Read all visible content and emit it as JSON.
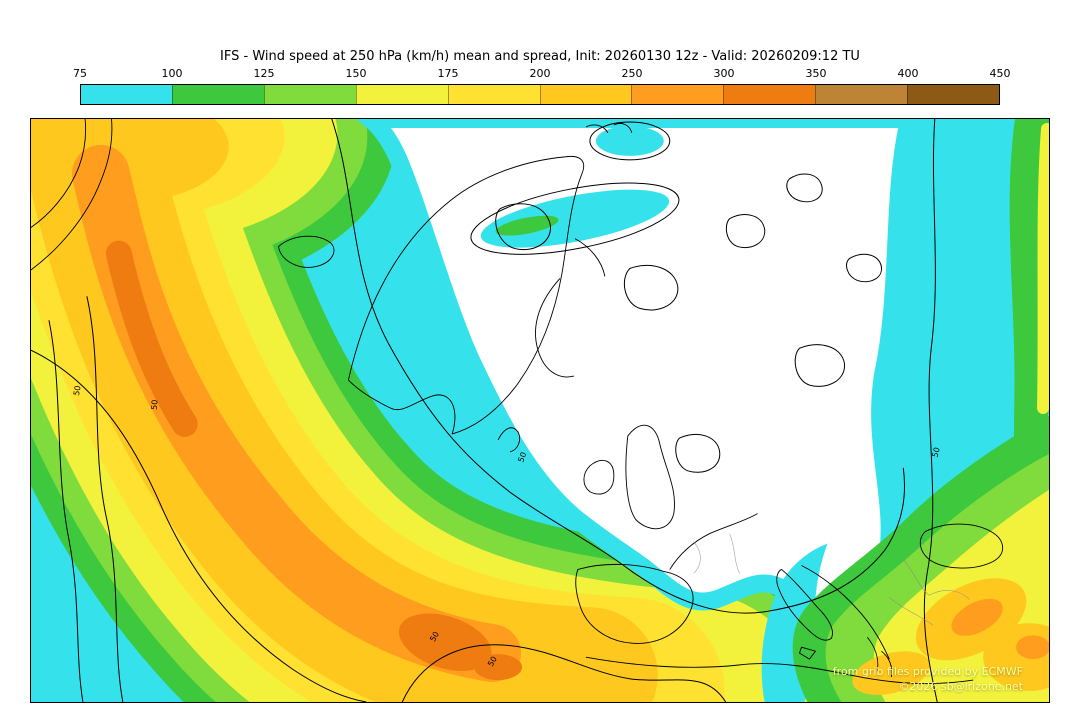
{
  "title": "IFS - Wind speed at 250 hPa (km/h) mean and spread, Init: 20260130 12z - Valid: 20260209:12 TU",
  "colorbar": {
    "ticks": [
      "75",
      "100",
      "125",
      "150",
      "175",
      "200",
      "250",
      "300",
      "350",
      "400",
      "450"
    ],
    "segments": [
      {
        "label": "75-100",
        "color": "#35E2EC"
      },
      {
        "label": "100-125",
        "color": "#3DC83D"
      },
      {
        "label": "125-150",
        "color": "#7FDC3C"
      },
      {
        "label": "150-175",
        "color": "#F2F23C"
      },
      {
        "label": "175-200",
        "color": "#FFE132"
      },
      {
        "label": "200-250",
        "color": "#FFC81E"
      },
      {
        "label": "250-300",
        "color": "#FF9E1E"
      },
      {
        "label": "300-350",
        "color": "#EF7C10"
      },
      {
        "label": "350-400",
        "color": "#BC8434"
      },
      {
        "label": "400-450",
        "color": "#8C5A14"
      }
    ]
  },
  "colors": {
    "below_range": "#FFFFFF",
    "cyan": "#35E2EC",
    "green": "#3DC83D",
    "lightgreen": "#7FDC3C",
    "yellow": "#F2F23C",
    "yellow2": "#FFE132",
    "gold": "#FFC81E",
    "orange": "#FF9E1E",
    "deeporange": "#EF7C10"
  },
  "map": {
    "contour_label": "50"
  },
  "attribution": {
    "line1": "from grib files provided by ECMWF",
    "line2": "©2026 sb@irizone.net"
  }
}
